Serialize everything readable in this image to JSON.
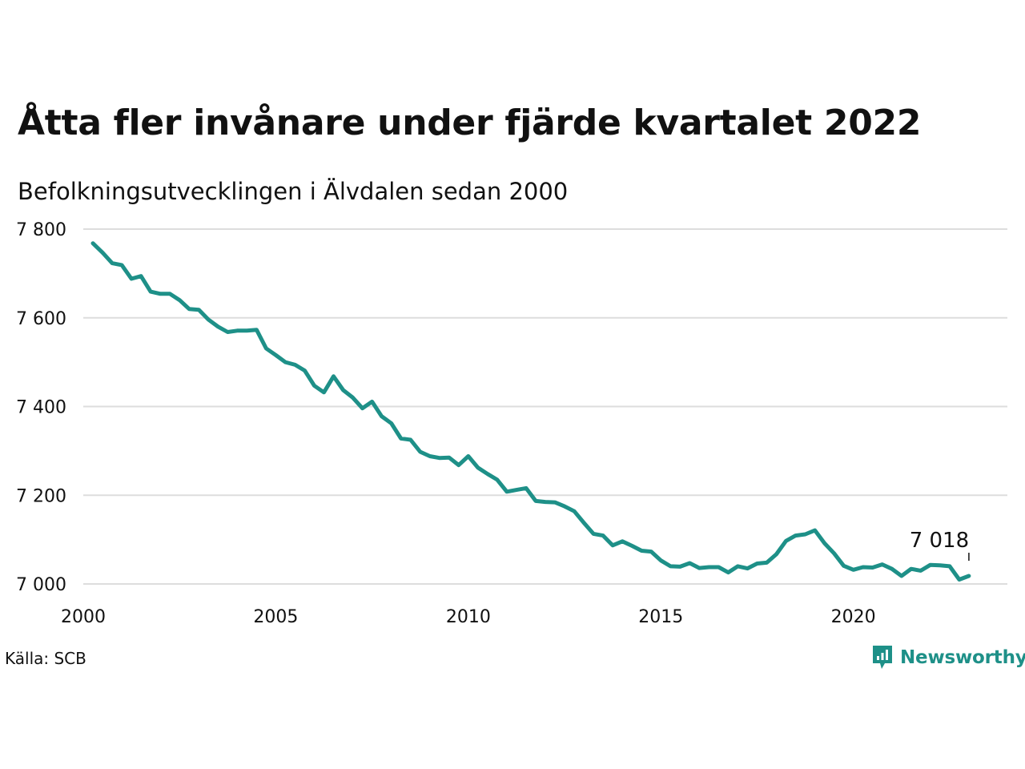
{
  "title": "Åtta fler invånare under fjärde kvartalet 2022",
  "subtitle": "Befolkningsutvecklingen i Älvdalen sedan 2000",
  "source": "Källa: SCB",
  "brand": {
    "name": "Newsworthy",
    "color": "#1e9088",
    "icon": "newsworthy-logo-icon"
  },
  "colors": {
    "line": "#1e9088",
    "grid": "#dddddd",
    "text": "#111111"
  },
  "chart_data": {
    "type": "line",
    "title": "Åtta fler invånare under fjärde kvartalet 2022",
    "subtitle": "Befolkningsutvecklingen i Älvdalen sedan 2000",
    "xlabel": "",
    "ylabel": "",
    "xlim": [
      2000.0,
      2024.0
    ],
    "ylim": [
      7000,
      7800
    ],
    "x_ticks": [
      2000,
      2005,
      2010,
      2015,
      2020
    ],
    "x_tick_labels": [
      "2000",
      "2005",
      "2010",
      "2015",
      "2020"
    ],
    "y_ticks": [
      7000,
      7200,
      7400,
      7600,
      7800
    ],
    "y_tick_labels": [
      "7 000",
      "7 200",
      "7 400",
      "7 600",
      "7 800"
    ],
    "grid": true,
    "legend": "none",
    "end_label": "7 018",
    "series": [
      {
        "x": [
          2000.25,
          2000.5,
          2000.75,
          2001.0,
          2001.25,
          2001.5,
          2001.75,
          2002.0,
          2002.25,
          2002.5,
          2002.75,
          2003.0,
          2003.25,
          2003.5,
          2003.75,
          2004.0,
          2004.25,
          2004.5,
          2004.75,
          2005.0,
          2005.25,
          2005.5,
          2005.75,
          2006.0,
          2006.25,
          2006.5,
          2006.75,
          2007.0,
          2007.25,
          2007.5,
          2007.75,
          2008.0,
          2008.25,
          2008.5,
          2008.75,
          2009.0,
          2009.25,
          2009.5,
          2009.75,
          2010.0,
          2010.25,
          2010.5,
          2010.75,
          2011.0,
          2011.25,
          2011.5,
          2011.75,
          2012.0,
          2012.25,
          2012.5,
          2012.75,
          2013.0,
          2013.25,
          2013.5,
          2013.75,
          2014.0,
          2014.25,
          2014.5,
          2014.75,
          2015.0,
          2015.25,
          2015.5,
          2015.75,
          2016.0,
          2016.25,
          2016.5,
          2016.75,
          2017.0,
          2017.25,
          2017.5,
          2017.75,
          2018.0,
          2018.25,
          2018.5,
          2018.75,
          2019.0,
          2019.25,
          2019.5,
          2019.75,
          2020.0,
          2020.25,
          2020.5,
          2020.75,
          2021.0,
          2021.25,
          2021.5,
          2021.75,
          2022.0,
          2022.25,
          2022.5,
          2022.75,
          2023.0
        ],
        "y": [
          7768,
          7747,
          7723,
          7719,
          7688,
          7694,
          7659,
          7654,
          7654,
          7640,
          7620,
          7618,
          7596,
          7580,
          7568,
          7571,
          7571,
          7573,
          7531,
          7516,
          7500,
          7494,
          7481,
          7447,
          7432,
          7468,
          7437,
          7420,
          7396,
          7411,
          7378,
          7362,
          7328,
          7325,
          7298,
          7288,
          7284,
          7285,
          7268,
          7288,
          7262,
          7248,
          7235,
          7208,
          7212,
          7216,
          7187,
          7185,
          7184,
          7175,
          7164,
          7138,
          7113,
          7109,
          7087,
          7096,
          7086,
          7075,
          7073,
          7053,
          7040,
          7039,
          7047,
          7036,
          7038,
          7038,
          7026,
          7040,
          7035,
          7046,
          7048,
          7067,
          7097,
          7109,
          7112,
          7121,
          7092,
          7069,
          7041,
          7032,
          7038,
          7037,
          7044,
          7034,
          7018,
          7034,
          7030,
          7043,
          7042,
          7040,
          7010,
          7018
        ]
      }
    ]
  }
}
